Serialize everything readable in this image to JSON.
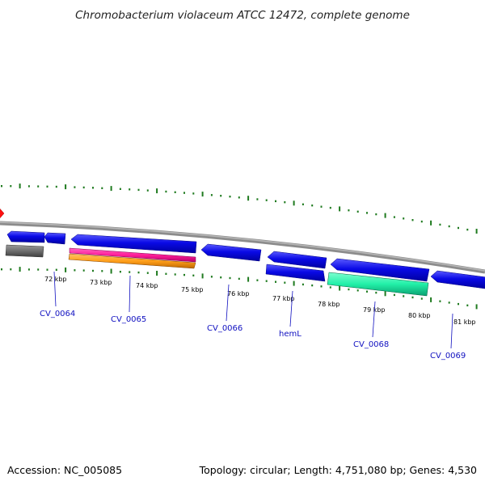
{
  "title": "Chromobacterium violaceum ATCC 12472, complete genome",
  "footer": {
    "accession": "Accession: NC_005085",
    "summary": "Topology: circular; Length: 4,751,080 bp; Genes: 4,530"
  },
  "colors": {
    "backbone": "#8c8c8c",
    "tick": "#1f7a1f",
    "forward_cds": "#0a0ae6",
    "reverse_cds": "#0a0ae6",
    "rrna_grey": "#6e6e6e",
    "pink_feature": "#ff1f9a",
    "orange_feature": "#ff9f1a",
    "teal_feature": "#22f0a8",
    "red_marker": "#ff1010",
    "gene_label": "#1010c0"
  },
  "scale_labels": [
    "72 kbp",
    "73 kbp",
    "74 kbp",
    "75 kbp",
    "76 kbp",
    "77 kbp",
    "78 kbp",
    "79 kbp",
    "80 kbp",
    "81 kbp"
  ],
  "gene_labels": [
    "CV_0064",
    "CV_0065",
    "CV_0066",
    "hemL",
    "CV_0068",
    "CV_0069"
  ]
}
